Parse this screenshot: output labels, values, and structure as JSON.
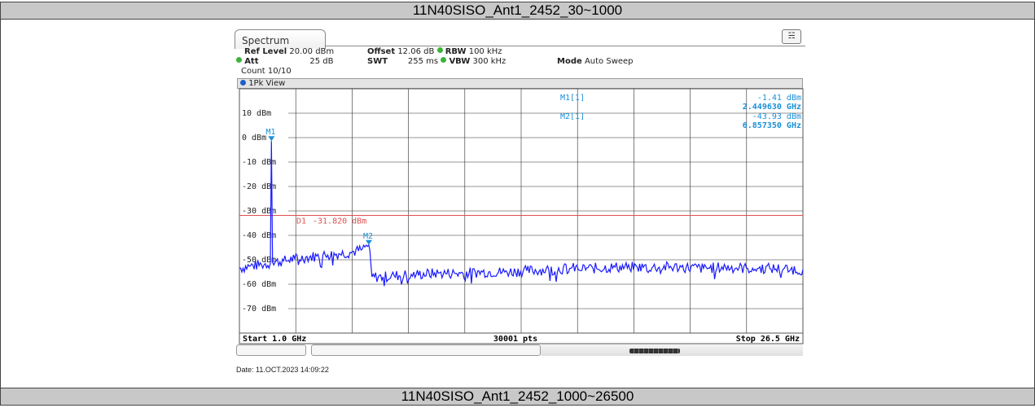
{
  "captions": {
    "top": "11N40SISO_Ant1_2452_30~1000",
    "bottom": "11N40SISO_Ant1_2452_1000~26500"
  },
  "analyzer": {
    "tab_label": "Spectrum",
    "ref_level_label": "Ref Level",
    "ref_level_value": "20.00 dBm",
    "offset_label": "Offset",
    "offset_value": "12.06 dB",
    "rbw_label": "RBW",
    "rbw_value": "100 kHz",
    "att_label": "Att",
    "att_value": "25 dB",
    "swt_label": "SWT",
    "swt_value": "255 ms",
    "vbw_label": "VBW",
    "vbw_value": "300 kHz",
    "mode_label": "Mode",
    "mode_value": "Auto Sweep",
    "count": "Count 10/10",
    "view_label": "1Pk View",
    "date_text": "Date: 11.OCT.2023  14:09:22",
    "indicator_color": "#3cb43c"
  },
  "chart_data": {
    "type": "line",
    "title": "",
    "xlabel": "",
    "ylabel": "",
    "x_start_label": "Start 1.0 GHz",
    "x_stop_label": "Stop 26.5 GHz",
    "points_label": "30001 pts",
    "x_range_ghz": [
      1.0,
      26.5
    ],
    "ylim": [
      -80,
      20
    ],
    "y_ticks": [
      {
        "value": 10,
        "label": "10 dBm"
      },
      {
        "value": 0,
        "label": "0 dBm"
      },
      {
        "value": -10,
        "label": "-10 dBm"
      },
      {
        "value": -20,
        "label": "-20 dBm"
      },
      {
        "value": -30,
        "label": "-30 dBm"
      },
      {
        "value": -40,
        "label": "-40 dBm"
      },
      {
        "value": -50,
        "label": "-50 dBm"
      },
      {
        "value": -60,
        "label": "-60 dBm"
      },
      {
        "value": -70,
        "label": "-70 dBm"
      }
    ],
    "grid": true,
    "display_line": {
      "label": "D1",
      "value_text": "-31.820 dBm",
      "value": -31.82,
      "color": "#e05050"
    },
    "markers": [
      {
        "name": "M1",
        "ref": "M1[1]",
        "x": 2.44963,
        "y": -1.41,
        "level_text": "-1.41 dBm",
        "freq_text": "2.449630 GHz"
      },
      {
        "name": "M2",
        "ref": "M2[1]",
        "x": 6.85735,
        "y": -43.93,
        "level_text": "-43.93 dBm",
        "freq_text": "6.857350 GHz"
      }
    ],
    "series": [
      {
        "color": "#1a1aff",
        "points": [
          [
            1.0,
            -53.5
          ],
          [
            1.5,
            -52.5
          ],
          [
            2.0,
            -52.0
          ],
          [
            2.4,
            -51.5
          ],
          [
            2.4496,
            -1.41
          ],
          [
            2.5,
            -51.0
          ],
          [
            3.0,
            -50.5
          ],
          [
            3.5,
            -49.5
          ],
          [
            4.0,
            -49.0
          ],
          [
            4.5,
            -48.5
          ],
          [
            5.0,
            -48.0
          ],
          [
            5.5,
            -47.5
          ],
          [
            6.0,
            -47.0
          ],
          [
            6.5,
            -46.0
          ],
          [
            6.857,
            -43.93
          ],
          [
            7.0,
            -57.0
          ],
          [
            7.5,
            -57.0
          ],
          [
            8.0,
            -56.5
          ],
          [
            9.0,
            -56.0
          ],
          [
            10.0,
            -55.5
          ],
          [
            11.0,
            -55.5
          ],
          [
            12.0,
            -55.0
          ],
          [
            13.0,
            -55.0
          ],
          [
            14.0,
            -54.5
          ],
          [
            15.0,
            -54.0
          ],
          [
            16.0,
            -53.5
          ],
          [
            17.0,
            -53.5
          ],
          [
            18.0,
            -53.0
          ],
          [
            19.0,
            -53.0
          ],
          [
            20.0,
            -53.0
          ],
          [
            21.0,
            -53.0
          ],
          [
            22.0,
            -53.5
          ],
          [
            23.0,
            -53.0
          ],
          [
            24.0,
            -53.5
          ],
          [
            25.0,
            -53.5
          ],
          [
            26.5,
            -54.0
          ]
        ]
      }
    ]
  }
}
